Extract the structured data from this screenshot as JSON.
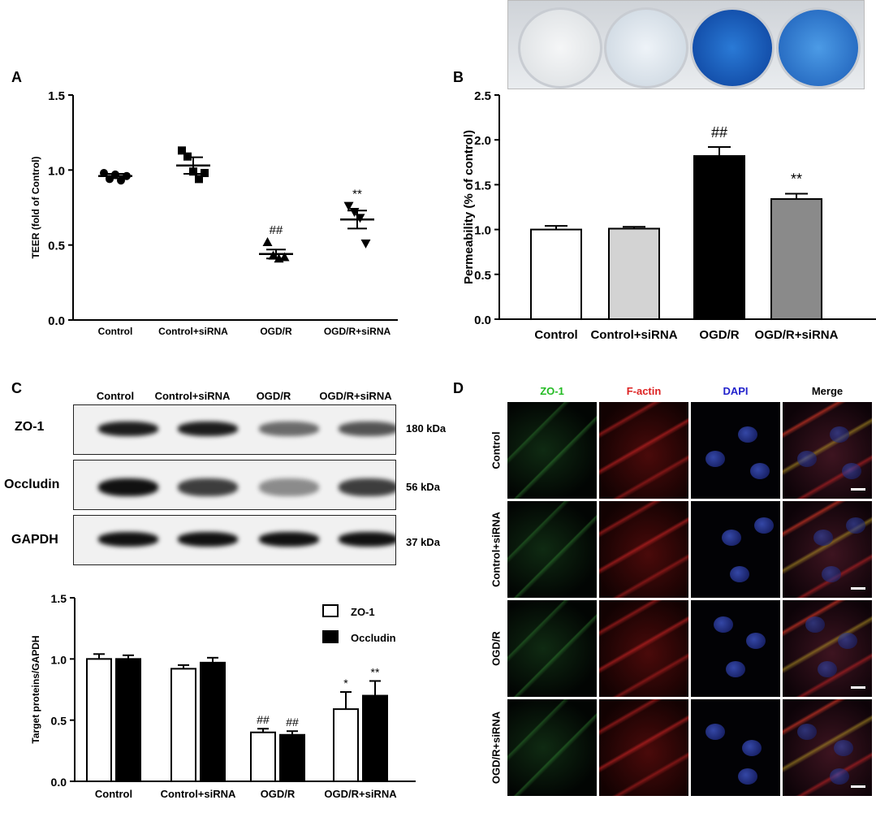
{
  "panels": {
    "A": "A",
    "B": "B",
    "C": "C",
    "D": "D"
  },
  "colors": {
    "white_bar": "#ffffff",
    "light_gray_bar": "#d3d3d3",
    "black_bar": "#000000",
    "dark_gray_bar": "#8a8a8a",
    "zo1_label": "#22bb22",
    "factin_label": "#dd2222",
    "dapi_label": "#2222cc"
  },
  "chart_data": [
    {
      "id": "A",
      "type": "scatter",
      "ylabel": "TEER (fold of Control)",
      "xlabel": "",
      "categories": [
        "Control",
        "Control+siRNA",
        "OGD/R",
        "OGD/R+siRNA"
      ],
      "markers": [
        "circle",
        "square",
        "triangle-up",
        "triangle-down"
      ],
      "points": [
        [
          0.98,
          0.94,
          0.97,
          0.93,
          0.96
        ],
        [
          1.13,
          1.09,
          0.99,
          0.94,
          0.98
        ],
        [
          0.52,
          0.43,
          0.41,
          0.42
        ],
        [
          0.76,
          0.72,
          0.68,
          0.51
        ]
      ],
      "means": [
        0.96,
        1.03,
        0.44,
        0.67
      ],
      "sem": [
        0.015,
        0.055,
        0.03,
        0.06
      ],
      "annotations": [
        "",
        "",
        "##",
        "**"
      ],
      "ylim": [
        0,
        1.5
      ],
      "yticks": [
        "0.0",
        "0.5",
        "1.0",
        "1.5"
      ]
    },
    {
      "id": "B",
      "type": "bar",
      "ylabel": "Permeability (% of control)",
      "xlabel": "",
      "categories": [
        "Control",
        "Control+siRNA",
        "OGD/R",
        "OGD/R+siRNA"
      ],
      "values": [
        1.0,
        1.01,
        1.82,
        1.34
      ],
      "errors": [
        0.04,
        0.02,
        0.1,
        0.06
      ],
      "bar_colors": [
        "#ffffff",
        "#d3d3d3",
        "#000000",
        "#8a8a8a"
      ],
      "annotations": [
        "",
        "",
        "##",
        "**"
      ],
      "ylim": [
        0,
        2.5
      ],
      "yticks": [
        "0.0",
        "0.5",
        "1.0",
        "1.5",
        "2.0",
        "2.5"
      ]
    },
    {
      "id": "C",
      "type": "bar",
      "ylabel": "Target proteins/GAPDH",
      "xlabel": "",
      "categories": [
        "Control",
        "Control+siRNA",
        "OGD/R",
        "OGD/R+siRNA"
      ],
      "series": [
        {
          "name": "ZO-1",
          "values": [
            1.0,
            0.92,
            0.4,
            0.59
          ],
          "errors": [
            0.04,
            0.03,
            0.03,
            0.14
          ],
          "annotations": [
            "",
            "",
            "##",
            "*"
          ],
          "color": "#ffffff"
        },
        {
          "name": "Occludin",
          "values": [
            1.0,
            0.97,
            0.38,
            0.7
          ],
          "errors": [
            0.03,
            0.04,
            0.03,
            0.12
          ],
          "annotations": [
            "",
            "",
            "##",
            "**"
          ],
          "color": "#000000"
        }
      ],
      "ylim": [
        0,
        1.5
      ],
      "yticks": [
        "0.0",
        "0.5",
        "1.0",
        "1.5"
      ],
      "legend": "top-right"
    }
  ],
  "blot": {
    "lanes": [
      "Control",
      "Control+siRNA",
      "OGD/R",
      "OGD/R+siRNA"
    ],
    "rows": [
      {
        "name": "ZO-1",
        "kda": "180  kDa",
        "intensity": [
          0.95,
          0.95,
          0.6,
          0.7
        ]
      },
      {
        "name": "Occludin",
        "kda": "56  kDa",
        "intensity": [
          1.0,
          0.8,
          0.45,
          0.8
        ]
      },
      {
        "name": "GAPDH",
        "kda": "37  kDa",
        "intensity": [
          1.0,
          1.0,
          1.0,
          1.0
        ]
      }
    ]
  },
  "microscopy": {
    "columns": [
      "ZO-1",
      "F-actin",
      "DAPI",
      "Merge"
    ],
    "rows": [
      "Control",
      "Control+siRNA",
      "OGD/R",
      "OGD/R+siRNA"
    ]
  }
}
